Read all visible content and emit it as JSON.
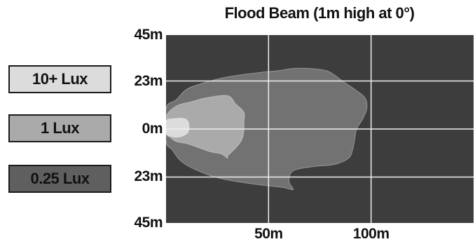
{
  "chart_data": {
    "type": "heatmap",
    "title": "Flood Beam (1m high at 0°)",
    "xlabel": "",
    "ylabel": "",
    "xlim": [
      0,
      150
    ],
    "ylim": [
      -45,
      45
    ],
    "grid": true,
    "y_ticks": [
      {
        "value": 45,
        "label": "45m"
      },
      {
        "value": 23,
        "label": "23m"
      },
      {
        "value": 0,
        "label": "0m"
      },
      {
        "value": -23,
        "label": "23m"
      },
      {
        "value": -45,
        "label": "45m"
      }
    ],
    "x_ticks": [
      {
        "value": 50,
        "label": "50m"
      },
      {
        "value": 100,
        "label": "100m"
      }
    ],
    "legend_placement": "left",
    "legend": [
      {
        "label": "10+ Lux",
        "color": "#dcdcdc"
      },
      {
        "label": "1 Lux",
        "color": "#aaaaaa"
      },
      {
        "label": "0.25 Lux",
        "color": "#5f5f5f"
      }
    ],
    "background_color": "#3d3d3d",
    "grid_color": "#f0f0f0",
    "series": [
      {
        "name": "0.25 Lux",
        "color": "#727272",
        "polygon": [
          [
            0,
            10
          ],
          [
            5,
            14
          ],
          [
            10,
            19
          ],
          [
            18,
            22
          ],
          [
            30,
            25
          ],
          [
            45,
            27
          ],
          [
            55,
            28
          ],
          [
            62,
            29
          ],
          [
            70,
            29
          ],
          [
            78,
            28
          ],
          [
            82,
            26
          ],
          [
            86,
            23
          ],
          [
            92,
            19
          ],
          [
            97,
            15
          ],
          [
            98,
            10
          ],
          [
            96,
            5
          ],
          [
            93,
            0
          ],
          [
            92,
            -5
          ],
          [
            91,
            -10
          ],
          [
            89,
            -14
          ],
          [
            82,
            -17
          ],
          [
            72,
            -18
          ],
          [
            62,
            -20
          ],
          [
            60,
            -25
          ],
          [
            62,
            -29
          ],
          [
            57,
            -28
          ],
          [
            48,
            -27
          ],
          [
            40,
            -26
          ],
          [
            28,
            -24
          ],
          [
            18,
            -21
          ],
          [
            8,
            -16
          ],
          [
            3,
            -10
          ],
          [
            0,
            -6
          ]
        ]
      },
      {
        "name": "1 Lux",
        "color": "#aaaaaa",
        "polygon": [
          [
            0,
            6
          ],
          [
            5,
            11
          ],
          [
            12,
            13
          ],
          [
            20,
            15
          ],
          [
            30,
            16
          ],
          [
            34,
            12
          ],
          [
            38,
            8
          ],
          [
            38,
            3
          ],
          [
            38,
            -1
          ],
          [
            37,
            -5
          ],
          [
            35,
            -8
          ],
          [
            32,
            -11
          ],
          [
            30,
            -13
          ],
          [
            30,
            -14
          ],
          [
            27,
            -12
          ],
          [
            22,
            -11
          ],
          [
            16,
            -9
          ],
          [
            10,
            -7
          ],
          [
            5,
            -6
          ],
          [
            2,
            -4
          ],
          [
            0,
            -2
          ]
        ]
      },
      {
        "name": "10+ Lux",
        "color": "#dcdcdc",
        "polygon": [
          [
            0,
            4
          ],
          [
            4,
            5
          ],
          [
            9,
            5
          ],
          [
            11,
            3
          ],
          [
            11,
            -1
          ],
          [
            9,
            -3
          ],
          [
            5,
            -4
          ],
          [
            1,
            -3
          ],
          [
            0,
            -1
          ]
        ]
      }
    ]
  }
}
